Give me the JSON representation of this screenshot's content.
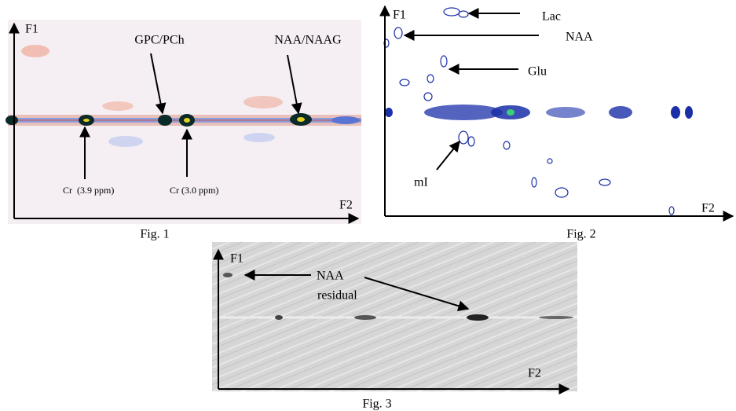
{
  "figures": [
    {
      "axis_y": "F1",
      "axis_x": "F2",
      "caption": "Fig. 1",
      "annotations": [
        "GPC/PCh",
        "NAA/NAAG",
        "Cr  (3.9 ppm)",
        "Cr (3.0 ppm)"
      ]
    },
    {
      "axis_y": "F1",
      "axis_x": "F2",
      "caption": "Fig. 2",
      "annotations": [
        "Lac",
        "NAA",
        "Glu",
        "mI"
      ]
    },
    {
      "axis_y": "F1",
      "axis_x": "F2",
      "caption": "Fig. 3",
      "annotations": [
        "NAA",
        "residual"
      ]
    }
  ]
}
